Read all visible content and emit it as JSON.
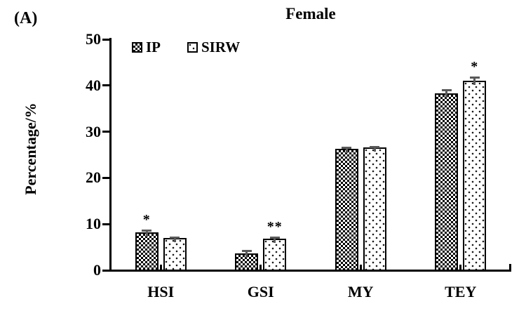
{
  "chart_data": {
    "type": "bar",
    "panel_label": "(A)",
    "title": "Female",
    "xlabel": "",
    "ylabel": "Percentage/%",
    "ylim": [
      0,
      50
    ],
    "yticks": [
      0,
      10,
      20,
      30,
      40,
      50
    ],
    "grid": false,
    "legend_position": "top-left-inside",
    "categories": [
      "HSI",
      "GSI",
      "MY",
      "TEY"
    ],
    "series": [
      {
        "name": "IP",
        "pattern": "checker",
        "values": [
          8.2,
          3.7,
          26.3,
          38.3
        ],
        "errors": [
          0.6,
          0.7,
          0.5,
          0.9
        ]
      },
      {
        "name": "SIRW",
        "pattern": "dots",
        "values": [
          7.0,
          6.8,
          26.6,
          41.0
        ],
        "errors": [
          0.3,
          0.5,
          0.3,
          0.9
        ]
      }
    ],
    "significance": [
      {
        "category": "HSI",
        "series": "IP",
        "label": "*"
      },
      {
        "category": "GSI",
        "series": "SIRW",
        "label": "**"
      },
      {
        "category": "TEY",
        "series": "SIRW",
        "label": "*"
      }
    ],
    "colors": {
      "bar_outline": "#000000",
      "error_bar": "#595959",
      "text": "#000000",
      "background": "#ffffff"
    }
  }
}
